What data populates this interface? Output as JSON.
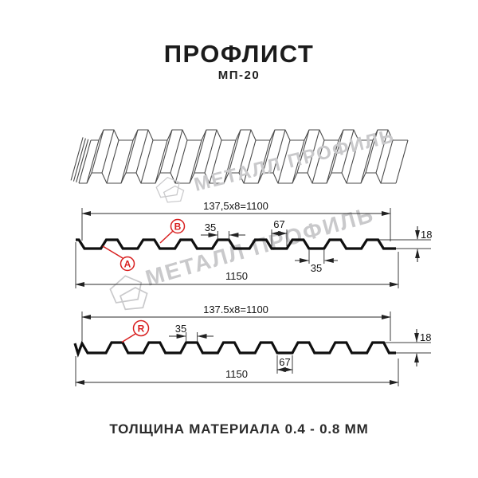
{
  "header": {
    "title": "ПРОФЛИСТ",
    "subtitle": "МП-20"
  },
  "footer": {
    "text": "ТОЛЩИНА МАТЕРИАЛА 0.4 - 0.8 ММ"
  },
  "watermark": {
    "text": "МЕТАЛЛ ПРОФИЛЬ"
  },
  "colors": {
    "accent_red": "#d81f1f",
    "line": "#2a2a2a",
    "profile_stroke": "#0f0f0f",
    "watermark_gray": "#c9c9cb"
  },
  "profile_front": {
    "label_a": "A",
    "label_b": "B",
    "dims": {
      "module": "137,5x8=1100",
      "rib_top": "35",
      "valley": "67",
      "height": "18",
      "rib_bottom": "35",
      "total": "1150"
    }
  },
  "profile_reverse": {
    "label_r": "R",
    "dims": {
      "module": "137.5x8=1100",
      "rib_top": "35",
      "valley": "67",
      "height": "18",
      "total": "1150"
    }
  }
}
